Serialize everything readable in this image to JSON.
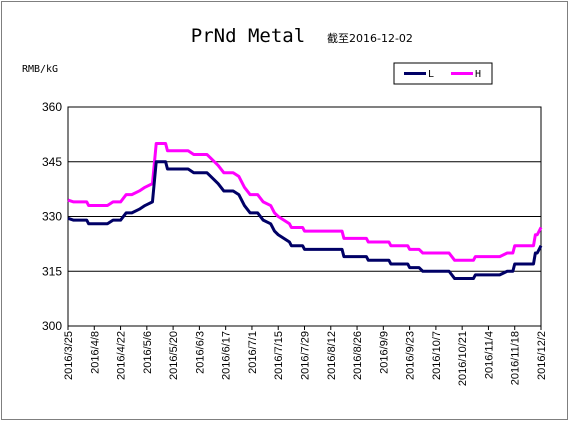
{
  "chart_data": {
    "type": "line",
    "title": "PrNd Metal",
    "subtitle": "截至2016-12-02",
    "ylabel": "RMB/kG",
    "ylim": [
      300,
      360
    ],
    "yticks": [
      300,
      315,
      330,
      345,
      360
    ],
    "xtick_labels": [
      "2016/3/25",
      "2016/4/8",
      "2016/4/22",
      "2016/5/6",
      "2016/5/20",
      "2016/6/3",
      "2016/6/17",
      "2016/7/1",
      "2016/7/15",
      "2016/7/29",
      "2016/8/12",
      "2016/8/26",
      "2016/9/9",
      "2016/9/23",
      "2016/10/7",
      "2016/10/21",
      "2016/11/4",
      "2016/11/18",
      "2016/12/2"
    ],
    "grid": "horizontal",
    "legend_position": "top-right",
    "colors": {
      "L": "#000066",
      "H": "#ff00ff"
    },
    "series": [
      {
        "name": "L",
        "points": [
          [
            "2016-03-25",
            329.5
          ],
          [
            "2016-03-28",
            329
          ],
          [
            "2016-04-04",
            329
          ],
          [
            "2016-04-05",
            328
          ],
          [
            "2016-04-15",
            328
          ],
          [
            "2016-04-18",
            329
          ],
          [
            "2016-04-22",
            329
          ],
          [
            "2016-04-25",
            331
          ],
          [
            "2016-04-28",
            331
          ],
          [
            "2016-05-02",
            332
          ],
          [
            "2016-05-05",
            333
          ],
          [
            "2016-05-09",
            334
          ],
          [
            "2016-05-11",
            345
          ],
          [
            "2016-05-16",
            345
          ],
          [
            "2016-05-17",
            343
          ],
          [
            "2016-05-28",
            343
          ],
          [
            "2016-05-31",
            342
          ],
          [
            "2016-06-07",
            342
          ],
          [
            "2016-06-09",
            341
          ],
          [
            "2016-06-13",
            339
          ],
          [
            "2016-06-16",
            337
          ],
          [
            "2016-06-21",
            337
          ],
          [
            "2016-06-24",
            336
          ],
          [
            "2016-06-27",
            333
          ],
          [
            "2016-06-30",
            331
          ],
          [
            "2016-07-04",
            331
          ],
          [
            "2016-07-07",
            329
          ],
          [
            "2016-07-11",
            328
          ],
          [
            "2016-07-13",
            326
          ],
          [
            "2016-07-15",
            325
          ],
          [
            "2016-07-18",
            324
          ],
          [
            "2016-07-21",
            323
          ],
          [
            "2016-07-22",
            322
          ],
          [
            "2016-07-28",
            322
          ],
          [
            "2016-07-29",
            321
          ],
          [
            "2016-08-18",
            321
          ],
          [
            "2016-08-19",
            319
          ],
          [
            "2016-08-31",
            319
          ],
          [
            "2016-09-01",
            318
          ],
          [
            "2016-09-12",
            318
          ],
          [
            "2016-09-13",
            317
          ],
          [
            "2016-09-22",
            317
          ],
          [
            "2016-09-23",
            316
          ],
          [
            "2016-09-28",
            316
          ],
          [
            "2016-09-30",
            315
          ],
          [
            "2016-10-14",
            315
          ],
          [
            "2016-10-17",
            313
          ],
          [
            "2016-10-27",
            313
          ],
          [
            "2016-10-28",
            314
          ],
          [
            "2016-11-10",
            314
          ],
          [
            "2016-11-14",
            315
          ],
          [
            "2016-11-17",
            315
          ],
          [
            "2016-11-18",
            317
          ],
          [
            "2016-11-28",
            317
          ],
          [
            "2016-11-29",
            320
          ],
          [
            "2016-11-30",
            320
          ],
          [
            "2016-12-02",
            322
          ]
        ]
      },
      {
        "name": "H",
        "points": [
          [
            "2016-03-25",
            334.5
          ],
          [
            "2016-03-28",
            334
          ],
          [
            "2016-04-04",
            334
          ],
          [
            "2016-04-05",
            333
          ],
          [
            "2016-04-15",
            333
          ],
          [
            "2016-04-18",
            334
          ],
          [
            "2016-04-22",
            334
          ],
          [
            "2016-04-25",
            336
          ],
          [
            "2016-04-28",
            336
          ],
          [
            "2016-05-02",
            337
          ],
          [
            "2016-05-05",
            338
          ],
          [
            "2016-05-09",
            339
          ],
          [
            "2016-05-11",
            350
          ],
          [
            "2016-05-16",
            350
          ],
          [
            "2016-05-17",
            348
          ],
          [
            "2016-05-28",
            348
          ],
          [
            "2016-05-31",
            347
          ],
          [
            "2016-06-07",
            347
          ],
          [
            "2016-06-09",
            346
          ],
          [
            "2016-06-13",
            344
          ],
          [
            "2016-06-16",
            342
          ],
          [
            "2016-06-21",
            342
          ],
          [
            "2016-06-24",
            341
          ],
          [
            "2016-06-27",
            338
          ],
          [
            "2016-06-30",
            336
          ],
          [
            "2016-07-04",
            336
          ],
          [
            "2016-07-07",
            334
          ],
          [
            "2016-07-11",
            333
          ],
          [
            "2016-07-13",
            331
          ],
          [
            "2016-07-15",
            330
          ],
          [
            "2016-07-18",
            329
          ],
          [
            "2016-07-21",
            328
          ],
          [
            "2016-07-22",
            327
          ],
          [
            "2016-07-28",
            327
          ],
          [
            "2016-07-29",
            326
          ],
          [
            "2016-08-18",
            326
          ],
          [
            "2016-08-19",
            324
          ],
          [
            "2016-08-31",
            324
          ],
          [
            "2016-09-01",
            323
          ],
          [
            "2016-09-12",
            323
          ],
          [
            "2016-09-13",
            322
          ],
          [
            "2016-09-22",
            322
          ],
          [
            "2016-09-23",
            321
          ],
          [
            "2016-09-28",
            321
          ],
          [
            "2016-09-30",
            320
          ],
          [
            "2016-10-14",
            320
          ],
          [
            "2016-10-17",
            318
          ],
          [
            "2016-10-27",
            318
          ],
          [
            "2016-10-28",
            319
          ],
          [
            "2016-11-10",
            319
          ],
          [
            "2016-11-14",
            320
          ],
          [
            "2016-11-17",
            320
          ],
          [
            "2016-11-18",
            322
          ],
          [
            "2016-11-28",
            322
          ],
          [
            "2016-11-29",
            325
          ],
          [
            "2016-11-30",
            325
          ],
          [
            "2016-12-02",
            327
          ]
        ]
      }
    ]
  }
}
